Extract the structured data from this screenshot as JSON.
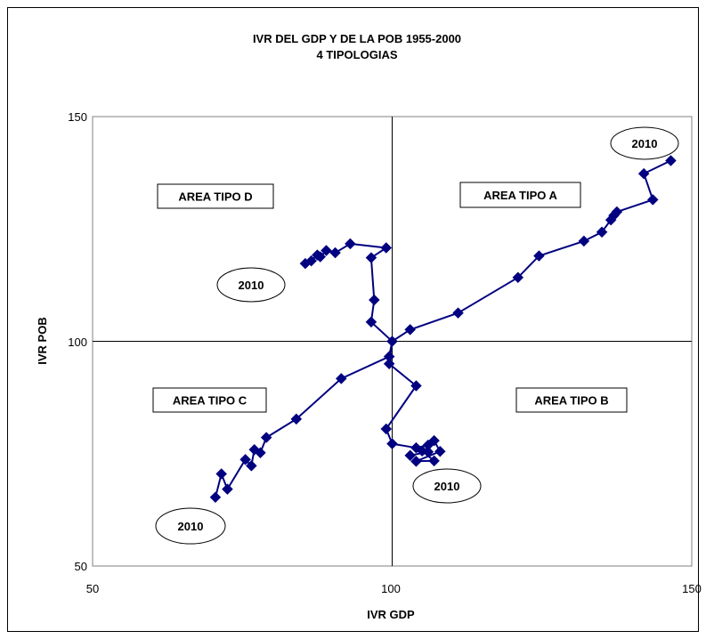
{
  "chart_data": {
    "type": "scatter",
    "title": "IVR DEL GDP Y DE LA POB 1955-2000",
    "subtitle": "4 TIPOLOGIAS",
    "xlabel": "IVR  GDP",
    "ylabel": "IVR  POB",
    "xlim": [
      50,
      150
    ],
    "ylim": [
      50,
      150
    ],
    "x_ticks": [
      "50",
      "100",
      "150"
    ],
    "y_ticks": [
      "50",
      "100",
      "150"
    ],
    "grid": false,
    "reference_lines": {
      "x": 100,
      "y": 100
    },
    "marker": "diamond",
    "color": "#000080",
    "areas": [
      {
        "label": "AREA TIPO D",
        "quadrant": "top-left"
      },
      {
        "label": "AREA TIPO A",
        "quadrant": "top-right"
      },
      {
        "label": "AREA TIPO C",
        "quadrant": "bottom-left"
      },
      {
        "label": "AREA TIPO B",
        "quadrant": "bottom-right"
      }
    ],
    "annotations": [
      {
        "text": "2010",
        "series": 0
      },
      {
        "text": "2010",
        "series": 1
      },
      {
        "text": "2010",
        "series": 2
      },
      {
        "text": "2010",
        "series": 3
      }
    ],
    "series": [
      {
        "points": [
          [
            100,
            100
          ],
          [
            103,
            102.6
          ],
          [
            111,
            106.3
          ],
          [
            121,
            114.2
          ],
          [
            124.5,
            119
          ],
          [
            132,
            122.3
          ],
          [
            135,
            124.3
          ],
          [
            136.5,
            127
          ],
          [
            137,
            128
          ],
          [
            137.5,
            128.8
          ],
          [
            143.5,
            131.5
          ],
          [
            142,
            137.3
          ],
          [
            146.5,
            140.2
          ]
        ]
      },
      {
        "points": [
          [
            100,
            100
          ],
          [
            96.5,
            104.3
          ],
          [
            97,
            109.2
          ],
          [
            96.5,
            118.6
          ],
          [
            99,
            120.8
          ],
          [
            93,
            121.7
          ],
          [
            90.5,
            119.7
          ],
          [
            89,
            120.2
          ],
          [
            88,
            118.8
          ],
          [
            87.5,
            119.2
          ],
          [
            86.5,
            117.9
          ],
          [
            85.5,
            117.3
          ]
        ]
      },
      {
        "points": [
          [
            100,
            100
          ],
          [
            99.5,
            96.6
          ],
          [
            91.5,
            91.7
          ],
          [
            84,
            82.7
          ],
          [
            79,
            78.6
          ],
          [
            78,
            75.2
          ],
          [
            77,
            75.9
          ],
          [
            76.5,
            72.3
          ],
          [
            75.5,
            73.7
          ],
          [
            72.5,
            67.1
          ],
          [
            71.5,
            70.5
          ],
          [
            70.5,
            65.3
          ]
        ]
      },
      {
        "points": [
          [
            100,
            100
          ],
          [
            99.5,
            95
          ],
          [
            104,
            90.1
          ],
          [
            99,
            80.5
          ],
          [
            100,
            77.2
          ],
          [
            104,
            76.3
          ],
          [
            106,
            76.9
          ],
          [
            107,
            77.9
          ],
          [
            108,
            75.5
          ],
          [
            104,
            73.3
          ],
          [
            107,
            73.4
          ],
          [
            105,
            75.6
          ],
          [
            106,
            75.4
          ],
          [
            103,
            74.6
          ]
        ]
      }
    ]
  }
}
